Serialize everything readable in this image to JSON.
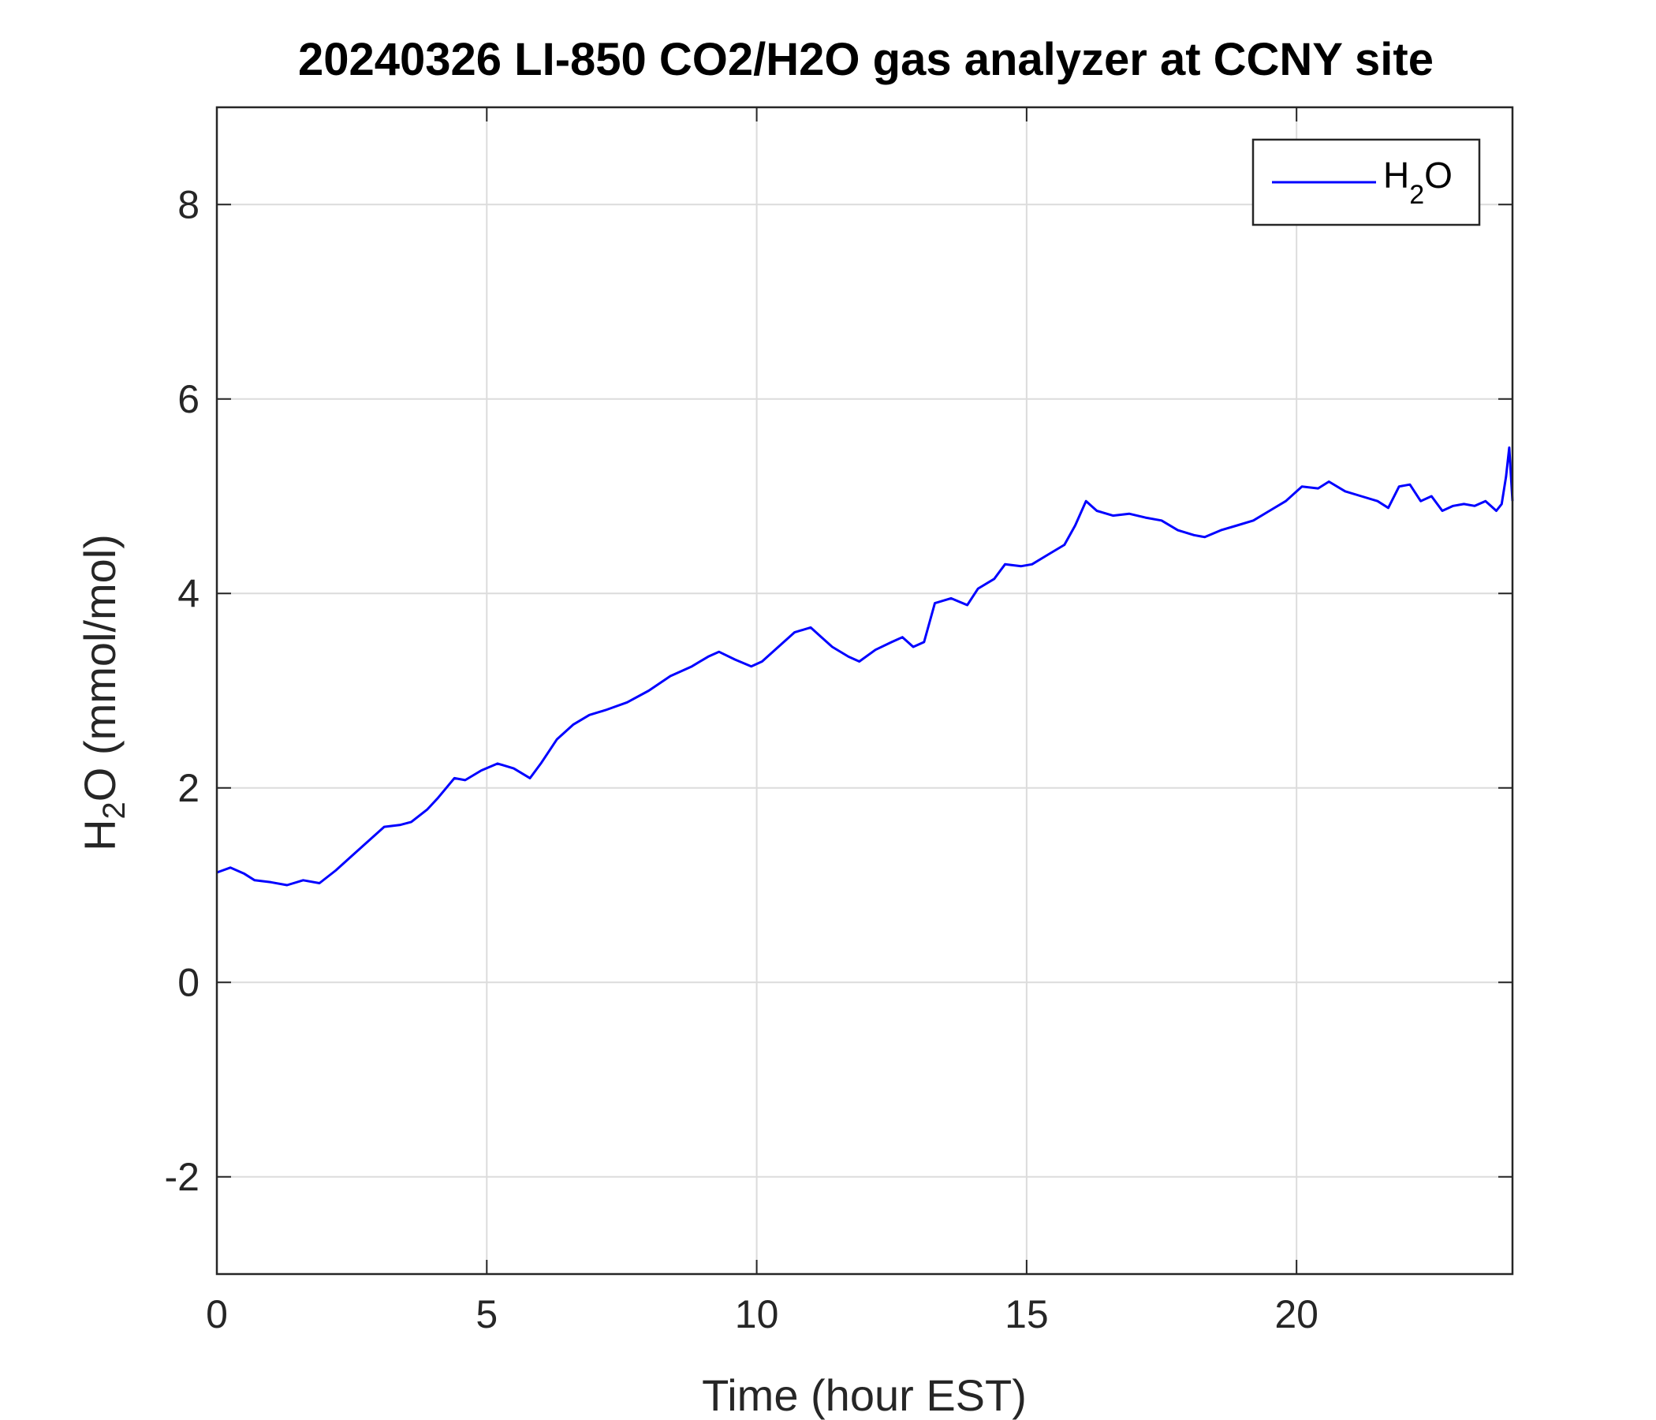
{
  "chart_data": {
    "type": "line",
    "title": "20240326 LI-850 CO2/H2O gas analyzer at CCNY site",
    "xlabel": "Time (hour EST)",
    "ylabel": {
      "main": "H",
      "sub": "2",
      "rest": "O (mmol/mol)"
    },
    "xlim": [
      0,
      24
    ],
    "ylim": [
      -3,
      9
    ],
    "xticks": [
      0,
      5,
      10,
      15,
      20
    ],
    "xtick_labels": [
      "0",
      "5",
      "10",
      "15",
      "20"
    ],
    "yticks": [
      -2,
      0,
      2,
      4,
      6,
      8
    ],
    "ytick_labels": [
      "-2",
      "0",
      "2",
      "4",
      "6",
      "8"
    ],
    "grid": true,
    "legend": {
      "position": "top-right",
      "entries": [
        {
          "main": "H",
          "sub": "2",
          "rest": "O"
        }
      ]
    },
    "series": [
      {
        "name": "H2O",
        "color": "#0000ff",
        "x": [
          0,
          0.25,
          0.5,
          0.7,
          1.0,
          1.3,
          1.6,
          1.9,
          2.2,
          2.5,
          2.8,
          3.1,
          3.4,
          3.6,
          3.9,
          4.1,
          4.4,
          4.6,
          4.9,
          5.2,
          5.5,
          5.8,
          6.0,
          6.3,
          6.6,
          6.9,
          7.2,
          7.6,
          8.0,
          8.4,
          8.8,
          9.1,
          9.3,
          9.6,
          9.9,
          10.1,
          10.4,
          10.7,
          11.0,
          11.2,
          11.4,
          11.7,
          11.9,
          12.2,
          12.5,
          12.7,
          12.9,
          13.1,
          13.3,
          13.6,
          13.9,
          14.1,
          14.4,
          14.6,
          14.9,
          15.1,
          15.4,
          15.7,
          15.9,
          16.1,
          16.3,
          16.6,
          16.9,
          17.2,
          17.5,
          17.8,
          18.1,
          18.3,
          18.6,
          18.9,
          19.2,
          19.5,
          19.8,
          20.1,
          20.4,
          20.6,
          20.9,
          21.2,
          21.5,
          21.7,
          21.9,
          22.1,
          22.3,
          22.5,
          22.7,
          22.9,
          23.1,
          23.3,
          23.5,
          23.7,
          23.8,
          23.88,
          23.94,
          24.0
        ],
        "y": [
          1.13,
          1.18,
          1.12,
          1.05,
          1.03,
          1.0,
          1.05,
          1.02,
          1.15,
          1.3,
          1.45,
          1.6,
          1.62,
          1.65,
          1.78,
          1.9,
          2.1,
          2.08,
          2.18,
          2.25,
          2.2,
          2.1,
          2.25,
          2.5,
          2.65,
          2.75,
          2.8,
          2.88,
          3.0,
          3.15,
          3.25,
          3.35,
          3.4,
          3.32,
          3.25,
          3.3,
          3.45,
          3.6,
          3.65,
          3.55,
          3.45,
          3.35,
          3.3,
          3.42,
          3.5,
          3.55,
          3.45,
          3.5,
          3.9,
          3.95,
          3.88,
          4.05,
          4.15,
          4.3,
          4.28,
          4.3,
          4.4,
          4.5,
          4.7,
          4.95,
          4.85,
          4.8,
          4.82,
          4.78,
          4.75,
          4.65,
          4.6,
          4.58,
          4.65,
          4.7,
          4.75,
          4.85,
          4.95,
          5.1,
          5.08,
          5.15,
          5.05,
          5.0,
          4.95,
          4.88,
          5.1,
          5.12,
          4.95,
          5.0,
          4.85,
          4.9,
          4.92,
          4.9,
          4.95,
          4.85,
          4.92,
          5.2,
          5.5,
          4.95
        ]
      }
    ]
  }
}
